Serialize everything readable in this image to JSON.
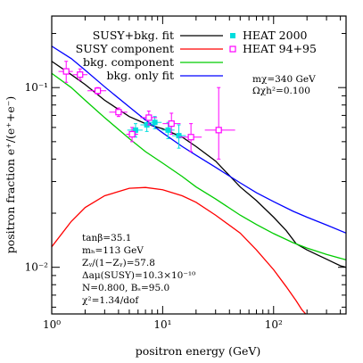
{
  "chart_data": {
    "type": "line",
    "xlabel": "positron energy  (GeV)",
    "ylabel": "positron fraction e⁺/(e⁺+e⁻)",
    "xscale": "log",
    "yscale": "log",
    "xlim": [
      1,
      450
    ],
    "ylim": [
      0.0055,
      0.25
    ],
    "x_ticks": [
      {
        "value": 1,
        "label": "10⁰"
      },
      {
        "value": 10,
        "label": "10¹"
      },
      {
        "value": 100,
        "label": "10²"
      }
    ],
    "y_ticks": [
      {
        "value": 0.01,
        "label": "10⁻²"
      },
      {
        "value": 0.1,
        "label": "10⁻¹"
      }
    ],
    "legend_position": "top",
    "series": [
      {
        "name": "SUSY+bkg. fit",
        "color": "#000000",
        "x": [
          1,
          1.5,
          2,
          3,
          5,
          7,
          10,
          15,
          20,
          30,
          50,
          70,
          100,
          130,
          160,
          200,
          250,
          300,
          350,
          400,
          450
        ],
        "y": [
          0.14,
          0.118,
          0.104,
          0.085,
          0.069,
          0.063,
          0.059,
          0.053,
          0.047,
          0.039,
          0.028,
          0.0235,
          0.019,
          0.016,
          0.0135,
          0.0125,
          0.0117,
          0.0111,
          0.0106,
          0.0102,
          0.01
        ]
      },
      {
        "name": "SUSY component",
        "color": "#ff0000",
        "x": [
          1,
          1.5,
          2,
          3,
          5,
          7,
          10,
          15,
          20,
          30,
          50,
          70,
          100,
          130,
          160,
          180,
          200
        ],
        "y": [
          0.013,
          0.018,
          0.0215,
          0.025,
          0.0275,
          0.0278,
          0.027,
          0.025,
          0.023,
          0.0195,
          0.0155,
          0.0125,
          0.0097,
          0.0078,
          0.0065,
          0.0058,
          0.0054
        ]
      },
      {
        "name": "bkg. component",
        "color": "#00cc00",
        "x": [
          1,
          1.5,
          2,
          3,
          5,
          7,
          10,
          15,
          20,
          30,
          50,
          70,
          100,
          150,
          200,
          300,
          450
        ],
        "y": [
          0.12,
          0.1,
          0.085,
          0.068,
          0.052,
          0.044,
          0.038,
          0.032,
          0.028,
          0.024,
          0.0195,
          0.0173,
          0.0154,
          0.0137,
          0.0128,
          0.0118,
          0.011
        ]
      },
      {
        "name": "bkg. only fit",
        "color": "#0000ff",
        "x": [
          1,
          1.5,
          2,
          3,
          5,
          7,
          10,
          15,
          20,
          30,
          50,
          70,
          100,
          150,
          200,
          300,
          450
        ],
        "y": [
          0.17,
          0.145,
          0.125,
          0.101,
          0.078,
          0.066,
          0.056,
          0.047,
          0.042,
          0.036,
          0.0295,
          0.026,
          0.0232,
          0.0205,
          0.019,
          0.0172,
          0.0155
        ]
      }
    ],
    "data_sets": [
      {
        "name": "HEAT 2000",
        "color": "#00dddd",
        "marker": "filled-square",
        "points": [
          {
            "x": 5.7,
            "y": 0.058,
            "xlo": 4.8,
            "xhi": 6.6,
            "ylo": 0.053,
            "yhi": 0.063
          },
          {
            "x": 7.2,
            "y": 0.062,
            "xlo": 6.3,
            "xhi": 8.3,
            "ylo": 0.057,
            "yhi": 0.067
          },
          {
            "x": 8.5,
            "y": 0.064,
            "xlo": 7.5,
            "xhi": 9.8,
            "ylo": 0.059,
            "yhi": 0.069
          },
          {
            "x": 11.2,
            "y": 0.058,
            "xlo": 9.8,
            "xhi": 12.8,
            "ylo": 0.052,
            "yhi": 0.064
          },
          {
            "x": 14.0,
            "y": 0.054,
            "xlo": 12.2,
            "xhi": 16.2,
            "ylo": 0.046,
            "yhi": 0.062
          }
        ]
      },
      {
        "name": "HEAT 94+95",
        "color": "#ff00ff",
        "marker": "open-square",
        "points": [
          {
            "x": 1.35,
            "y": 0.123,
            "xlo": 1.15,
            "xhi": 1.55,
            "ylo": 0.107,
            "yhi": 0.14
          },
          {
            "x": 1.8,
            "y": 0.118,
            "xlo": 1.55,
            "xhi": 2.1,
            "ylo": 0.11,
            "yhi": 0.127
          },
          {
            "x": 2.6,
            "y": 0.096,
            "xlo": 2.1,
            "xhi": 3.1,
            "ylo": 0.092,
            "yhi": 0.1
          },
          {
            "x": 4.0,
            "y": 0.073,
            "xlo": 3.3,
            "xhi": 4.8,
            "ylo": 0.069,
            "yhi": 0.077
          },
          {
            "x": 5.3,
            "y": 0.055,
            "xlo": 4.7,
            "xhi": 6.0,
            "ylo": 0.05,
            "yhi": 0.06
          },
          {
            "x": 7.5,
            "y": 0.068,
            "xlo": 6.3,
            "xhi": 8.9,
            "ylo": 0.062,
            "yhi": 0.074
          },
          {
            "x": 12.0,
            "y": 0.063,
            "xlo": 10.0,
            "xhi": 14.5,
            "ylo": 0.055,
            "yhi": 0.072
          },
          {
            "x": 18.0,
            "y": 0.053,
            "xlo": 14.0,
            "xhi": 22.5,
            "ylo": 0.044,
            "yhi": 0.063
          },
          {
            "x": 32.0,
            "y": 0.058,
            "xlo": 24.0,
            "xhi": 45.0,
            "ylo": 0.04,
            "yhi": 0.1
          }
        ]
      }
    ]
  },
  "legend": [
    {
      "label": "SUSY+bkg. fit",
      "color": "#000000",
      "kind": "line"
    },
    {
      "label": "SUSY component",
      "color": "#ff0000",
      "kind": "line"
    },
    {
      "label": "bkg. component",
      "color": "#00cc00",
      "kind": "line"
    },
    {
      "label": "bkg. only fit",
      "color": "#0000ff",
      "kind": "line"
    },
    {
      "label": "HEAT 2000",
      "color": "#00dddd",
      "kind": "filled-square"
    },
    {
      "label": "HEAT 94+95",
      "color": "#ff00ff",
      "kind": "open-square"
    }
  ],
  "model_box": {
    "line1": "mχ=340 GeV",
    "line2": "Ωχh²=0.100"
  },
  "param_box": [
    "tanβ=35.1",
    "mₕ=113 GeV",
    "Zᵧ/(1−Zᵧ)=57.8",
    "Δaμ(SUSY)=10.3×10⁻¹⁰",
    "N=0.800, Bₛ=95.0",
    "χ²=1.34/dof"
  ]
}
